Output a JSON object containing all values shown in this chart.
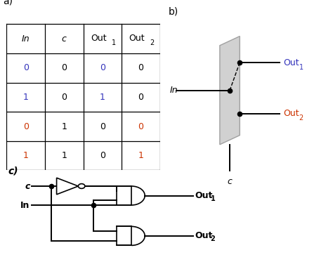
{
  "title_a": "a)",
  "title_b": "b)",
  "title_c": "c)",
  "out1_color": "#3333bb",
  "out2_color": "#cc3300",
  "black": "#000000",
  "gray_face": "#cccccc",
  "gray_edge": "#999999",
  "bg": "#ffffff",
  "table_data": [
    [
      "0",
      "0",
      "0",
      "0"
    ],
    [
      "1",
      "0",
      "1",
      "0"
    ],
    [
      "0",
      "1",
      "0",
      "0"
    ],
    [
      "1",
      "1",
      "0",
      "1"
    ]
  ],
  "row_colors": [
    [
      "#3333bb",
      "#000000",
      "#3333bb",
      "#000000"
    ],
    [
      "#3333bb",
      "#000000",
      "#3333bb",
      "#000000"
    ],
    [
      "#cc3300",
      "#000000",
      "#000000",
      "#cc3300"
    ],
    [
      "#cc3300",
      "#000000",
      "#000000",
      "#cc3300"
    ]
  ]
}
